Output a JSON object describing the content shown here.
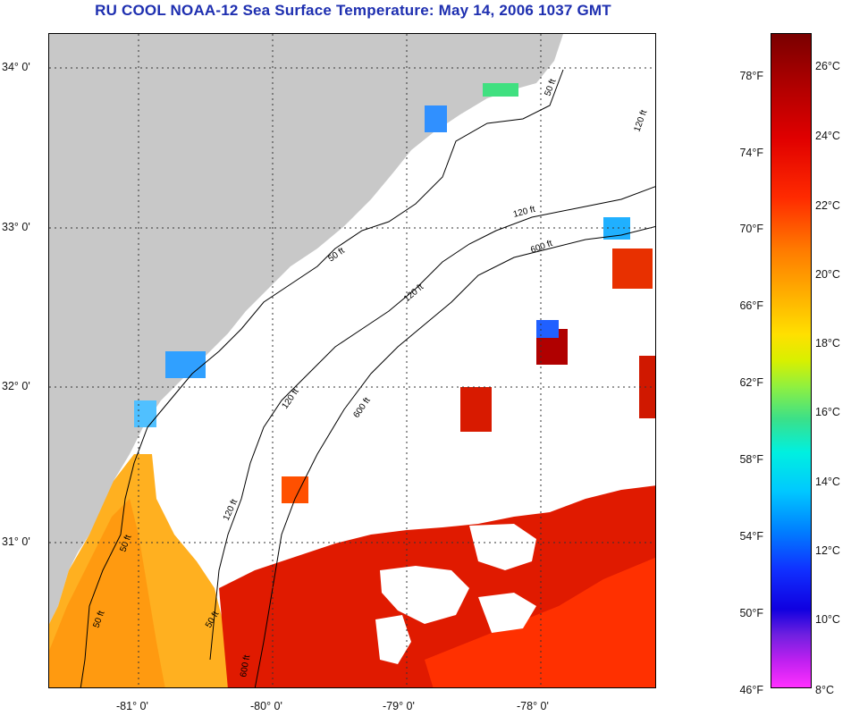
{
  "title": "RU COOL  NOAA-12  Sea Surface Temperature:  May 14, 2006 1037 GMT",
  "lat_labels": [
    "34° 0'",
    "33° 0'",
    "32° 0'",
    "31° 0'"
  ],
  "lon_labels": [
    "-81° 0'",
    "-80° 0'",
    "-79° 0'",
    "-78° 0'"
  ],
  "contour_labels": [
    "50 ft",
    "120 ft",
    "600 ft",
    "50 ft",
    "120 ft",
    "600 ft",
    "50 ft",
    "120 ft",
    "600 ft",
    "50 ft",
    "50 ft",
    "120 ft",
    "50 ft",
    "600 ft"
  ],
  "colorbar": {
    "fahrenheit": [
      "78°F",
      "74°F",
      "70°F",
      "66°F",
      "62°F",
      "58°F",
      "54°F",
      "50°F",
      "46°F"
    ],
    "celsius": [
      "26°C",
      "24°C",
      "22°C",
      "20°C",
      "18°C",
      "16°C",
      "14°C",
      "12°C",
      "10°C",
      "8°C"
    ]
  },
  "colors": {
    "land": "#c8c8c8",
    "cloud_mask": "#ffffff",
    "title": "#1e2fb0",
    "warm_water": "#e01a00",
    "gulf_stream": "#ff3000",
    "shelf_water": "#ffb020"
  }
}
